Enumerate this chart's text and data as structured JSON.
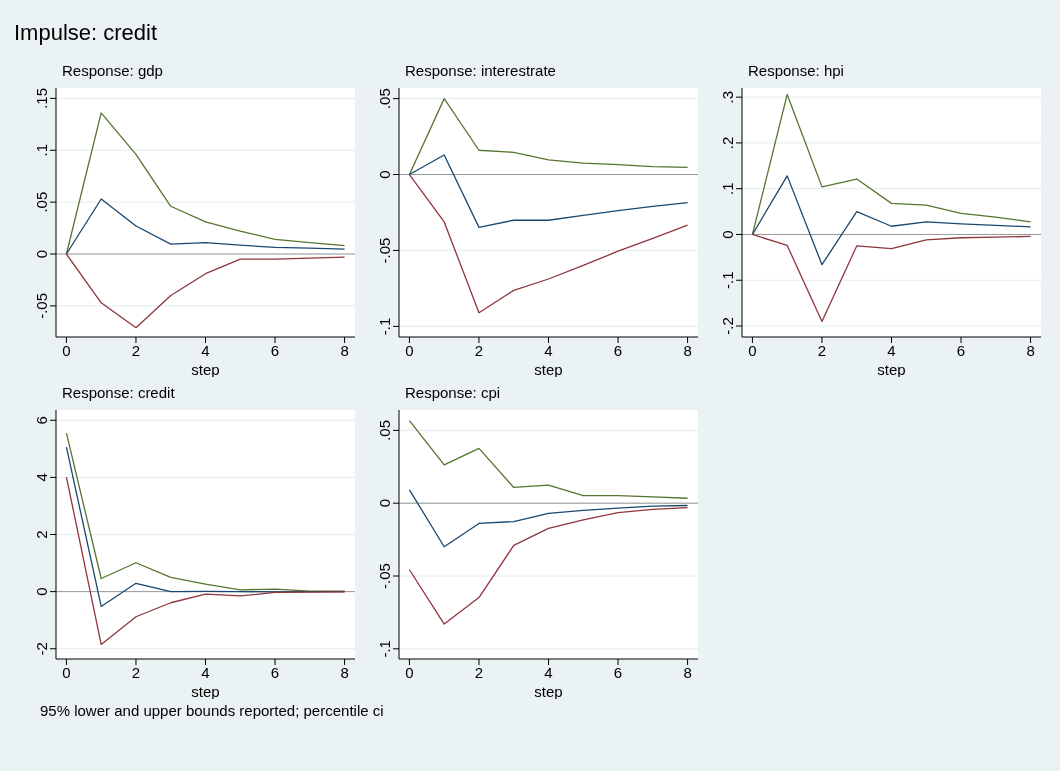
{
  "chart_data": [
    {
      "type": "line",
      "title": "Impulse: credit",
      "subtitle": "Response: gdp",
      "xlabel": "step",
      "x": [
        0,
        1,
        2,
        3,
        4,
        5,
        6,
        7,
        8
      ],
      "xlim": [
        -0.3,
        8.3
      ],
      "xticks": [
        0,
        2,
        4,
        6,
        8
      ],
      "ylim": [
        -0.08,
        0.16
      ],
      "yticks": [
        {
          "value": -0.05,
          "label": "-.05"
        },
        0,
        {
          "value": 0.05,
          "label": ".05"
        },
        {
          "value": 0.1,
          "label": ".1"
        },
        {
          "value": 0.15,
          "label": ".15"
        }
      ],
      "grid": "y",
      "marker": "none",
      "line_style": "solid",
      "ref_lines": [
        {
          "axis": "y",
          "value": 0,
          "color": "#999999"
        }
      ],
      "series": [
        {
          "color": "#55752f",
          "values": [
            0,
            0.136,
            0.096,
            0.046,
            0.031,
            0.022,
            0.014,
            0.011,
            0.008
          ]
        },
        {
          "color": "#1a476f",
          "values": [
            0,
            0.053,
            0.027,
            0.0095,
            0.011,
            0.0085,
            0.0063,
            0.0057,
            0.0047
          ]
        },
        {
          "color": "#90353b",
          "values": [
            0,
            -0.047,
            -0.071,
            -0.04,
            -0.019,
            -0.005,
            -0.005,
            -0.004,
            -0.003
          ]
        }
      ]
    },
    {
      "type": "line",
      "subtitle": "Response: interestrate",
      "xlabel": "step",
      "x": [
        0,
        1,
        2,
        3,
        4,
        5,
        6,
        7,
        8
      ],
      "xlim": [
        -0.3,
        8.3
      ],
      "xticks": [
        0,
        2,
        4,
        6,
        8
      ],
      "ylim": [
        -0.107,
        0.057
      ],
      "yticks": [
        {
          "value": -0.1,
          "label": "-.1"
        },
        {
          "value": -0.05,
          "label": "-.05"
        },
        0,
        {
          "value": 0.05,
          "label": ".05"
        }
      ],
      "grid": "y",
      "marker": "none",
      "line_style": "solid",
      "ref_lines": [
        {
          "axis": "y",
          "value": 0,
          "color": "#999999"
        }
      ],
      "series": [
        {
          "color": "#55752f",
          "values": [
            0,
            0.05,
            0.016,
            0.0146,
            0.0097,
            0.0075,
            0.0065,
            0.0052,
            0.0047
          ]
        },
        {
          "color": "#1a476f",
          "values": [
            0,
            0.0129,
            -0.0348,
            -0.0301,
            -0.0301,
            -0.0269,
            -0.0237,
            -0.021,
            -0.0185
          ]
        },
        {
          "color": "#90353b",
          "values": [
            0,
            -0.0312,
            -0.091,
            -0.0763,
            -0.0688,
            -0.0598,
            -0.0505,
            -0.042,
            -0.0333
          ]
        }
      ]
    },
    {
      "type": "line",
      "subtitle": "Response: hpi",
      "xlabel": "step",
      "x": [
        0,
        1,
        2,
        3,
        4,
        5,
        6,
        7,
        8
      ],
      "xlim": [
        -0.3,
        8.3
      ],
      "xticks": [
        0,
        2,
        4,
        6,
        8
      ],
      "ylim": [
        -0.224,
        0.32
      ],
      "yticks": [
        {
          "value": -0.2,
          "label": "-.2"
        },
        {
          "value": -0.1,
          "label": "-.1"
        },
        0,
        {
          "value": 0.1,
          "label": ".1"
        },
        {
          "value": 0.2,
          "label": ".2"
        },
        {
          "value": 0.3,
          "label": ".3"
        }
      ],
      "grid": "y",
      "marker": "none",
      "line_style": "solid",
      "ref_lines": [
        {
          "axis": "y",
          "value": 0,
          "color": "#999999"
        }
      ],
      "series": [
        {
          "color": "#55752f",
          "values": [
            0,
            0.306,
            0.104,
            0.121,
            0.068,
            0.064,
            0.046,
            0.038,
            0.0275
          ]
        },
        {
          "color": "#1a476f",
          "values": [
            0,
            0.128,
            -0.066,
            0.05,
            0.018,
            0.0275,
            0.023,
            0.02,
            0.0167
          ]
        },
        {
          "color": "#90353b",
          "values": [
            0,
            -0.024,
            -0.19,
            -0.025,
            -0.031,
            -0.0116,
            -0.0072,
            -0.006,
            -0.0043
          ]
        }
      ]
    },
    {
      "type": "line",
      "subtitle": "Response: credit",
      "xlabel": "step",
      "x": [
        0,
        1,
        2,
        3,
        4,
        5,
        6,
        7,
        8
      ],
      "xlim": [
        -0.3,
        8.3
      ],
      "xticks": [
        0,
        2,
        4,
        6,
        8
      ],
      "ylim": [
        -2.36,
        6.36
      ],
      "yticks": [
        -2,
        0,
        2,
        4,
        6
      ],
      "grid": "y",
      "marker": "none",
      "line_style": "solid",
      "ref_lines": [
        {
          "axis": "y",
          "value": 0,
          "color": "#999999"
        }
      ],
      "annotations": [
        "95% lower and upper bounds reported; percentile ci"
      ],
      "series": [
        {
          "color": "#55752f",
          "values": [
            5.55,
            0.46,
            1.01,
            0.5,
            0.26,
            0.06,
            0.09,
            0.02,
            0.02
          ]
        },
        {
          "color": "#1a476f",
          "values": [
            5.06,
            -0.52,
            0.29,
            0,
            0.01,
            0,
            -0.01,
            0,
            0
          ]
        },
        {
          "color": "#90353b",
          "values": [
            4.01,
            -1.85,
            -0.88,
            -0.39,
            -0.09,
            -0.15,
            -0.03,
            -0.02,
            -0.01
          ]
        }
      ]
    },
    {
      "type": "line",
      "subtitle": "Response: cpi",
      "xlabel": "step",
      "x": [
        0,
        1,
        2,
        3,
        4,
        5,
        6,
        7,
        8
      ],
      "xlim": [
        -0.3,
        8.3
      ],
      "xticks": [
        0,
        2,
        4,
        6,
        8
      ],
      "ylim": [
        -0.107,
        0.064
      ],
      "yticks": [
        {
          "value": -0.1,
          "label": "-.1"
        },
        {
          "value": -0.05,
          "label": "-.05"
        },
        0,
        {
          "value": 0.05,
          "label": ".05"
        }
      ],
      "grid": "y",
      "marker": "none",
      "line_style": "solid",
      "ref_lines": [
        {
          "axis": "y",
          "value": 0,
          "color": "#999999"
        }
      ],
      "series": [
        {
          "color": "#55752f",
          "values": [
            0.0567,
            0.0263,
            0.0376,
            0.0108,
            0.0124,
            0.0052,
            0.0052,
            0.0043,
            0.0034
          ]
        },
        {
          "color": "#1a476f",
          "values": [
            0.0092,
            -0.0299,
            -0.0139,
            -0.0126,
            -0.007,
            -0.005,
            -0.0034,
            -0.002,
            -0.0016
          ]
        },
        {
          "color": "#90353b",
          "values": [
            -0.0457,
            -0.083,
            -0.0648,
            -0.029,
            -0.0173,
            -0.0115,
            -0.0065,
            -0.0043,
            -0.0031
          ]
        }
      ]
    }
  ]
}
